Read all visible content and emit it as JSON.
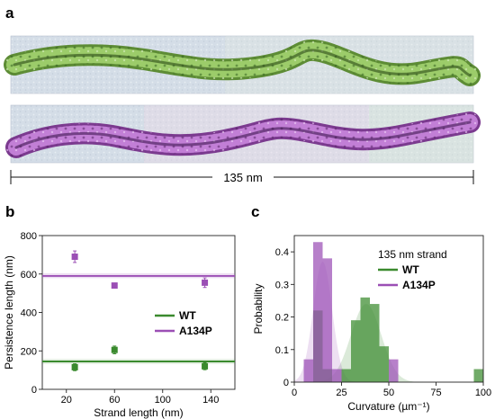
{
  "panels": {
    "a": {
      "label": "a",
      "scale_bar_label": "135 nm",
      "strands": [
        {
          "name": "WT",
          "color": "#7fb04a"
        },
        {
          "name": "A134P",
          "color": "#a356b6"
        }
      ]
    },
    "b": {
      "label": "b"
    },
    "c": {
      "label": "c"
    }
  },
  "chart_data": [
    {
      "panel": "b",
      "type": "scatter",
      "xlabel": "Strand length (nm)",
      "ylabel": "Persistence length (nm)",
      "xlim": [
        0,
        160
      ],
      "ylim": [
        0,
        800
      ],
      "xticks": [
        20,
        60,
        100,
        140
      ],
      "yticks": [
        0,
        200,
        400,
        600,
        800
      ],
      "grid": false,
      "legend_position": "center-right",
      "series": [
        {
          "name": "WT",
          "color": "#3a8a2e",
          "x": [
            27,
            60,
            135
          ],
          "y": [
            115,
            205,
            120
          ],
          "err": [
            18,
            20,
            18
          ],
          "hline": 145
        },
        {
          "name": "A134P",
          "color": "#9b4fb5",
          "x": [
            27,
            60,
            135
          ],
          "y": [
            690,
            540,
            555
          ],
          "err": [
            30,
            10,
            25
          ],
          "hline": 590
        }
      ]
    },
    {
      "panel": "c",
      "type": "bar",
      "annotation": "135 nm strand",
      "xlabel": "Curvature (µm⁻¹)",
      "ylabel": "Probability",
      "xlim": [
        0,
        100
      ],
      "ylim": [
        0,
        0.45
      ],
      "xticks": [
        0,
        25,
        50,
        75,
        100
      ],
      "yticks": [
        0,
        0.1,
        0.2,
        0.3,
        0.4
      ],
      "grid": false,
      "legend_position": "top-right",
      "bin_width": 5,
      "series": [
        {
          "name": "WT",
          "color": "#3a8a2e",
          "bins": [
            {
              "x": 10,
              "y": 0.22
            },
            {
              "x": 15,
              "y": 0.04
            },
            {
              "x": 25,
              "y": 0.04
            },
            {
              "x": 30,
              "y": 0.19
            },
            {
              "x": 35,
              "y": 0.26
            },
            {
              "x": 40,
              "y": 0.24
            },
            {
              "x": 45,
              "y": 0.11
            },
            {
              "x": 95,
              "y": 0.04
            }
          ],
          "fit": {
            "mu": 38,
            "sigma": 8,
            "peak": 0.24
          }
        },
        {
          "name": "A134P",
          "color": "#9b4fb5",
          "bins": [
            {
              "x": 5,
              "y": 0.07
            },
            {
              "x": 10,
              "y": 0.43
            },
            {
              "x": 15,
              "y": 0.38
            },
            {
              "x": 20,
              "y": 0.04
            },
            {
              "x": 50,
              "y": 0.07
            }
          ],
          "fit": {
            "mu": 15,
            "sigma": 5,
            "peak": 0.37
          }
        }
      ]
    }
  ]
}
